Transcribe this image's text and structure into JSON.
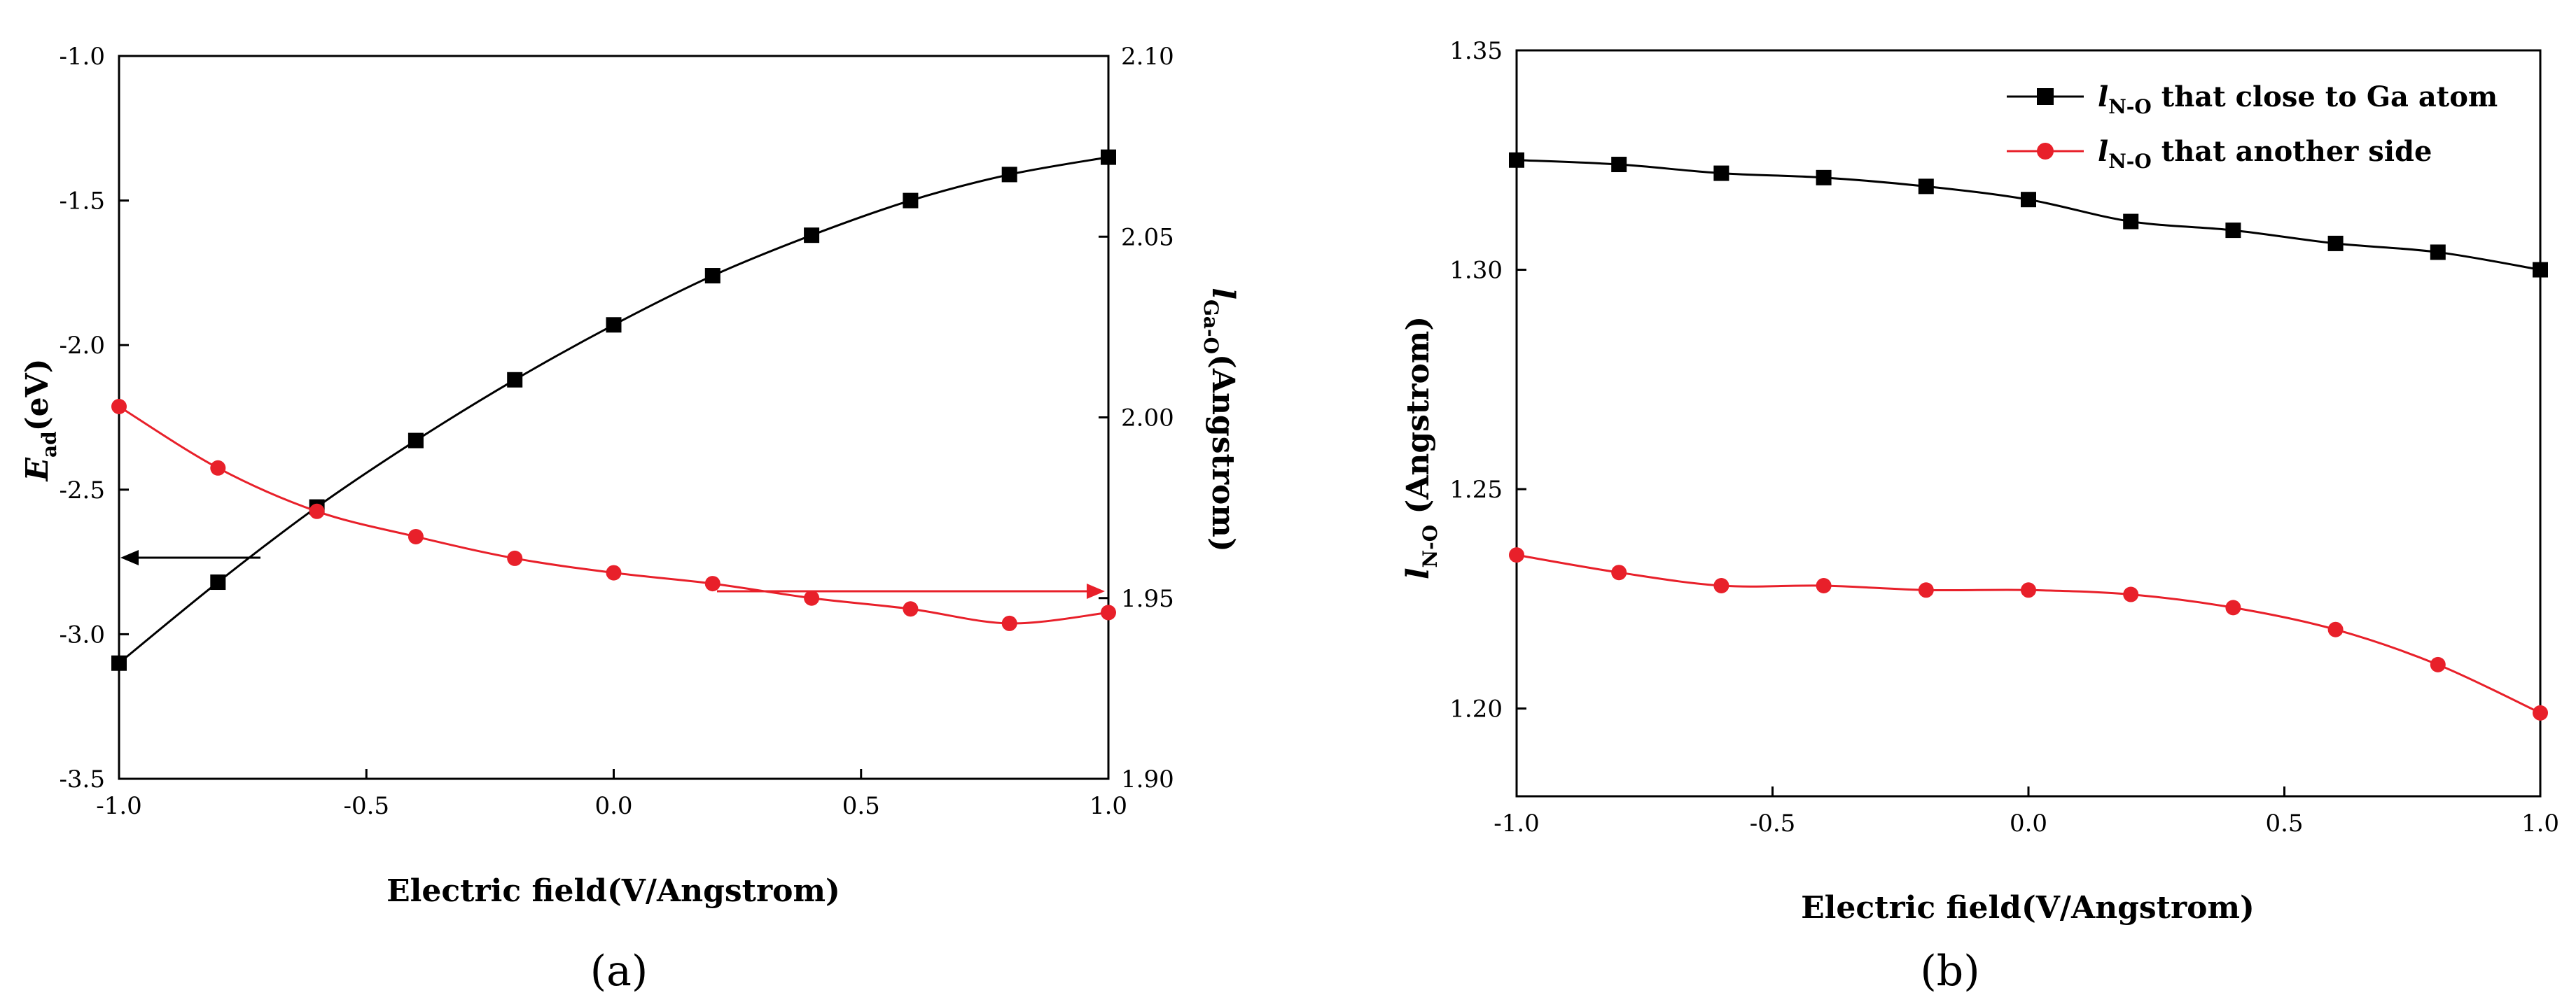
{
  "chart_data": [
    {
      "id": "a",
      "type": "line",
      "panel_label": "(a)",
      "xlabel": "Electric field(V/Angstrom)",
      "ylabel_main": "E",
      "ylabel_sub": "ad",
      "ylabel_unit": "(eV)",
      "y2label_main": "l",
      "y2label_sub": "Ga-O",
      "y2label_unit": "(Angstrom)",
      "xlim": [
        -1.0,
        1.0
      ],
      "ylim": [
        -3.5,
        -1.0
      ],
      "y2lim": [
        1.9,
        2.1
      ],
      "xticks": [
        "-1.0",
        "-0.5",
        "0.0",
        "0.5",
        "1.0"
      ],
      "yticks": [
        "-1.0",
        "-1.5",
        "-2.0",
        "-2.5",
        "-3.0",
        "-3.5"
      ],
      "y2ticks": [
        "2.10",
        "2.05",
        "2.00",
        "1.95",
        "1.90"
      ],
      "series": [
        {
          "name": "E_ad",
          "axis": "left",
          "color": "#000000",
          "marker": "square",
          "x": [
            -1.0,
            -0.8,
            -0.6,
            -0.4,
            -0.2,
            0.0,
            0.2,
            0.4,
            0.6,
            0.8,
            1.0
          ],
          "y": [
            -3.1,
            -2.82,
            -2.56,
            -2.33,
            -2.12,
            -1.93,
            -1.76,
            -1.62,
            -1.5,
            -1.41,
            -1.35
          ]
        },
        {
          "name": "l_Ga-O",
          "axis": "right",
          "color": "#e8202a",
          "marker": "circle",
          "x": [
            -1.0,
            -0.8,
            -0.6,
            -0.4,
            -0.2,
            0.0,
            0.2,
            0.4,
            0.6,
            0.8,
            1.0
          ],
          "y": [
            2.003,
            1.986,
            1.974,
            1.967,
            1.961,
            1.957,
            1.954,
            1.95,
            1.947,
            1.943,
            1.946
          ]
        }
      ]
    },
    {
      "id": "b",
      "type": "line",
      "panel_label": "(b)",
      "xlabel": "Electric field(V/Angstrom)",
      "ylabel_main": "l",
      "ylabel_sub": "N-O",
      "ylabel_unit": " (Angstrom)",
      "xlim": [
        -1.0,
        1.0
      ],
      "ylim": [
        1.18,
        1.35
      ],
      "xticks": [
        "-1.0",
        "-0.5",
        "0.0",
        "0.5",
        "1.0"
      ],
      "yticks": [
        "1.35",
        "1.30",
        "1.25",
        "1.20"
      ],
      "legend": [
        {
          "main": "l",
          "sub": "N-O",
          "text": " that close to Ga atom"
        },
        {
          "main": "l",
          "sub": "N-O",
          "text": " that another side"
        }
      ],
      "series": [
        {
          "name": "l_N-O close to Ga atom",
          "color": "#000000",
          "marker": "square",
          "x": [
            -1.0,
            -0.8,
            -0.6,
            -0.4,
            -0.2,
            0.0,
            0.2,
            0.4,
            0.6,
            0.8,
            1.0
          ],
          "y": [
            1.325,
            1.324,
            1.322,
            1.321,
            1.319,
            1.316,
            1.311,
            1.309,
            1.306,
            1.304,
            1.3
          ]
        },
        {
          "name": "l_N-O another side",
          "color": "#e8202a",
          "marker": "circle",
          "x": [
            -1.0,
            -0.8,
            -0.6,
            -0.4,
            -0.2,
            0.0,
            0.2,
            0.4,
            0.6,
            0.8,
            1.0
          ],
          "y": [
            1.235,
            1.231,
            1.228,
            1.228,
            1.227,
            1.227,
            1.226,
            1.223,
            1.218,
            1.21,
            1.199
          ]
        }
      ]
    }
  ]
}
